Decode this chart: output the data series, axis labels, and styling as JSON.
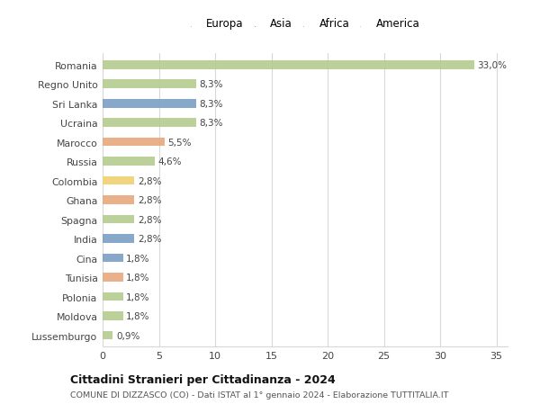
{
  "countries": [
    "Romania",
    "Regno Unito",
    "Sri Lanka",
    "Ucraina",
    "Marocco",
    "Russia",
    "Colombia",
    "Ghana",
    "Spagna",
    "India",
    "Cina",
    "Tunisia",
    "Polonia",
    "Moldova",
    "Lussemburgo"
  ],
  "values": [
    33.0,
    8.3,
    8.3,
    8.3,
    5.5,
    4.6,
    2.8,
    2.8,
    2.8,
    2.8,
    1.8,
    1.8,
    1.8,
    1.8,
    0.9
  ],
  "labels": [
    "33,0%",
    "8,3%",
    "8,3%",
    "8,3%",
    "5,5%",
    "4,6%",
    "2,8%",
    "2,8%",
    "2,8%",
    "2,8%",
    "1,8%",
    "1,8%",
    "1,8%",
    "1,8%",
    "0,9%"
  ],
  "continents": [
    "Europa",
    "Europa",
    "Asia",
    "Europa",
    "Africa",
    "Europa",
    "America",
    "Africa",
    "Europa",
    "Asia",
    "Asia",
    "Africa",
    "Europa",
    "Europa",
    "Europa"
  ],
  "colors": {
    "Europa": "#b5cc8e",
    "Asia": "#7b9fc4",
    "Africa": "#e8a87c",
    "America": "#f0d070"
  },
  "legend_order": [
    "Europa",
    "Asia",
    "Africa",
    "America"
  ],
  "xlim": [
    0,
    36
  ],
  "xticks": [
    0,
    5,
    10,
    15,
    20,
    25,
    30,
    35
  ],
  "title": "Cittadini Stranieri per Cittadinanza - 2024",
  "subtitle": "COMUNE DI DIZZASCO (CO) - Dati ISTAT al 1° gennaio 2024 - Elaborazione TUTTITALIA.IT",
  "background_color": "#ffffff",
  "grid_color": "#d8d8d8",
  "bar_height": 0.45
}
